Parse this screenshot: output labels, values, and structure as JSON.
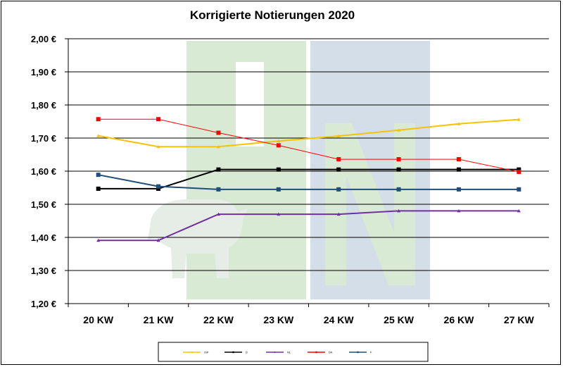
{
  "chart_data": {
    "type": "line",
    "title": "Korrigierte Notierungen 2020",
    "xlabel": "",
    "ylabel": "",
    "categories": [
      "20 KW",
      "21 KW",
      "22 KW",
      "23 KW",
      "24 KW",
      "25 KW",
      "26 KW",
      "27 KW"
    ],
    "y_tick_labels": [
      "2,00 €",
      "1,90 €",
      "1,80 €",
      "1,70 €",
      "1,60 €",
      "1,50 €",
      "1,40 €",
      "1,30 €",
      "1,20 €"
    ],
    "ylim": [
      1.2,
      2.0
    ],
    "ytick_step": 0.1,
    "grid": true,
    "legend_position": "bottom",
    "series": [
      {
        "name": "ISP",
        "color": "#F5C400",
        "marker": "triangle",
        "values": [
          1.707,
          1.674,
          1.674,
          1.691,
          1.706,
          1.724,
          1.743,
          1.756
        ]
      },
      {
        "name": "D",
        "color": "#000000",
        "marker": "square",
        "values": [
          1.547,
          1.547,
          1.605,
          1.605,
          1.605,
          1.605,
          1.605,
          1.605
        ]
      },
      {
        "name": "NL",
        "color": "#7030A0",
        "marker": "triangle",
        "values": [
          1.391,
          1.391,
          1.47,
          1.47,
          1.47,
          1.48,
          1.48,
          1.48
        ]
      },
      {
        "name": "DK",
        "color": "#FF0000",
        "marker": "square",
        "values": [
          1.757,
          1.757,
          1.716,
          1.678,
          1.636,
          1.636,
          1.636,
          1.598
        ]
      },
      {
        "name": "F",
        "color": "#1F4E79",
        "marker": "square",
        "values": [
          1.589,
          1.554,
          1.545,
          1.545,
          1.545,
          1.545,
          1.545,
          1.545
        ]
      }
    ]
  },
  "watermark": {
    "colors": {
      "green": "#D8E9D4",
      "blue": "#D3DEE9",
      "letter": "#FFFFFF"
    }
  }
}
